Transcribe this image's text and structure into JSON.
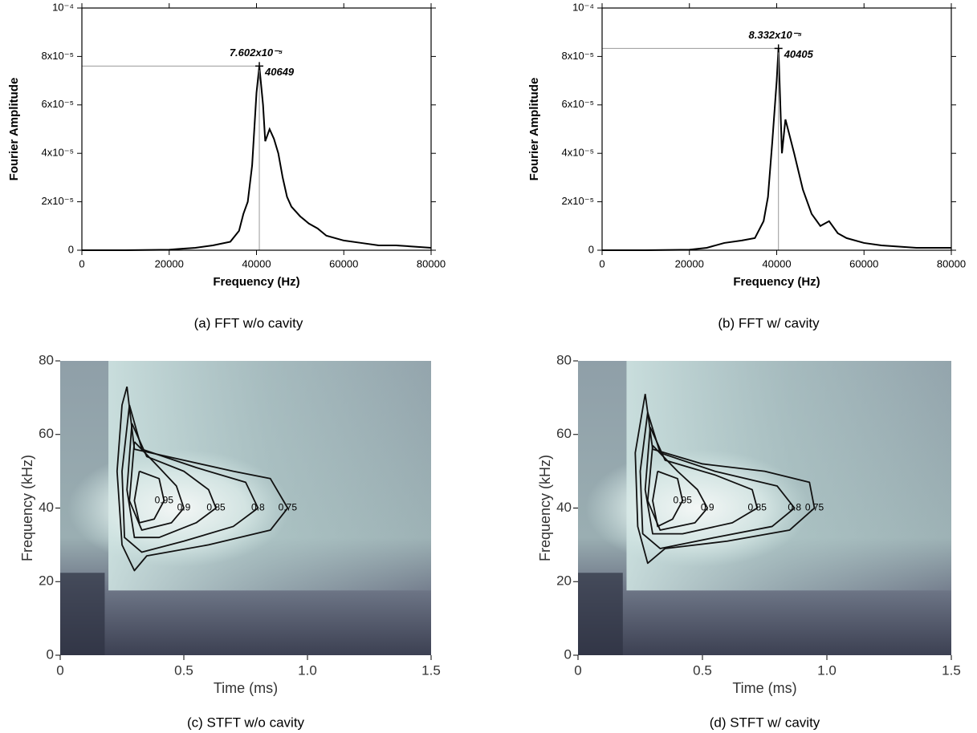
{
  "chart_data": [
    {
      "type": "line",
      "caption": "(a) FFT w/o cavity",
      "x_label": "Frequency (Hz)",
      "y_label": "Fourier Amplitude",
      "xlim": [
        0,
        80000
      ],
      "xticks": [
        0,
        20000,
        40000,
        60000,
        80000
      ],
      "ylim": [
        0,
        0.0001
      ],
      "yticks": [
        0,
        {
          "value": 2e-05,
          "label": "2x10⁻⁵"
        },
        {
          "value": 4e-05,
          "label": "4x10⁻⁵"
        },
        {
          "value": 6e-05,
          "label": "6x10⁻⁵"
        },
        {
          "value": 8e-05,
          "label": "8x10⁻⁵"
        },
        {
          "value": 0.0001,
          "label": "10⁻⁴"
        }
      ],
      "series": [
        {
          "color": "#000000",
          "x": [
            0,
            10000,
            20000,
            22000,
            26000,
            30000,
            34000,
            36000,
            37000,
            38000,
            39000,
            40000,
            40649,
            41500,
            42000,
            43000,
            44000,
            45000,
            46000,
            47000,
            48000,
            50000,
            52000,
            54000,
            56000,
            60000,
            64000,
            68000,
            72000,
            76000,
            80000
          ],
          "values": [
            0,
            0,
            2e-07,
            5e-07,
            1e-06,
            2e-06,
            3.5e-06,
            8e-06,
            1.5e-05,
            2e-05,
            3.5e-05,
            6.5e-05,
            7.602e-05,
            6e-05,
            4.5e-05,
            5e-05,
            4.6e-05,
            4e-05,
            3e-05,
            2.2e-05,
            1.8e-05,
            1.4e-05,
            1.1e-05,
            9e-06,
            6e-06,
            4e-06,
            3e-06,
            2e-06,
            2e-06,
            1.5e-06,
            1e-06
          ]
        }
      ],
      "annotations": [
        {
          "x": 40649,
          "y": 7.602e-05,
          "label": "7.602x10⁻⁵"
        }
      ]
    },
    {
      "type": "line",
      "caption": "(b) FFT w/ cavity",
      "x_label": "Frequency (Hz)",
      "y_label": "Fourier Amplitude",
      "xlim": [
        0,
        80000
      ],
      "xticks": [
        0,
        20000,
        40000,
        60000,
        80000
      ],
      "ylim": [
        0,
        0.0001
      ],
      "yticks": [
        0,
        {
          "value": 2e-05,
          "label": "2x10⁻⁵"
        },
        {
          "value": 4e-05,
          "label": "4x10⁻⁵"
        },
        {
          "value": 6e-05,
          "label": "6x10⁻⁵"
        },
        {
          "value": 8e-05,
          "label": "8x10⁻⁵"
        },
        {
          "value": 0.0001,
          "label": "10⁻⁴"
        }
      ],
      "series": [
        {
          "color": "#000000",
          "x": [
            0,
            10000,
            20000,
            24000,
            28000,
            32000,
            35000,
            37000,
            38000,
            39000,
            40000,
            40405,
            41200,
            42000,
            43000,
            44000,
            46000,
            48000,
            50000,
            52000,
            54000,
            56000,
            60000,
            64000,
            68000,
            72000,
            76000,
            80000
          ],
          "values": [
            0,
            0,
            2e-07,
            1e-06,
            3e-06,
            4e-06,
            5e-06,
            1.2e-05,
            2.2e-05,
            4.5e-05,
            7e-05,
            8.332e-05,
            4e-05,
            5.4e-05,
            4.7e-05,
            4e-05,
            2.5e-05,
            1.5e-05,
            1e-05,
            1.2e-05,
            7e-06,
            5e-06,
            3e-06,
            2e-06,
            1.5e-06,
            1e-06,
            1e-06,
            1e-06
          ]
        }
      ],
      "annotations": [
        {
          "x": 40405,
          "y": 8.332e-05,
          "label": "8.332x10⁻⁵"
        }
      ]
    },
    {
      "type": "contour",
      "caption": "(c) STFT w/o cavity",
      "x_label": "Time (ms)",
      "y_label": "Frequency (kHz)",
      "xlim": [
        0,
        1.5
      ],
      "xticks": [
        0,
        0.5,
        {
          "value": 1,
          "label": "1.0"
        },
        1.5
      ],
      "ylim": [
        0,
        80
      ],
      "yticks": [
        0,
        20,
        40,
        60,
        80
      ],
      "contours": [
        {
          "level": 0.75,
          "x": [
            0.27,
            0.3,
            0.5,
            0.7,
            0.85,
            0.92,
            0.85,
            0.6,
            0.35,
            0.3,
            0.25,
            0.23,
            0.25,
            0.27
          ],
          "y": [
            73,
            56,
            53,
            50,
            48,
            40,
            34,
            30,
            27,
            23,
            30,
            50,
            68,
            73
          ]
        },
        {
          "level": 0.8,
          "x": [
            0.28,
            0.33,
            0.55,
            0.75,
            0.8,
            0.7,
            0.5,
            0.33,
            0.26,
            0.25,
            0.28
          ],
          "y": [
            68,
            56,
            51,
            47,
            40,
            35,
            31,
            28,
            32,
            50,
            68
          ]
        },
        {
          "level": 0.85,
          "x": [
            0.29,
            0.35,
            0.5,
            0.6,
            0.63,
            0.55,
            0.4,
            0.3,
            0.27,
            0.29
          ],
          "y": [
            63,
            54,
            50,
            45,
            40,
            36,
            32,
            32,
            45,
            63
          ]
        },
        {
          "level": 0.9,
          "x": [
            0.3,
            0.4,
            0.47,
            0.5,
            0.45,
            0.33,
            0.28,
            0.3
          ],
          "y": [
            58,
            51,
            46,
            40,
            36,
            34,
            42,
            58
          ]
        },
        {
          "level": 0.95,
          "x": [
            0.32,
            0.4,
            0.42,
            0.38,
            0.32,
            0.3,
            0.32
          ],
          "y": [
            50,
            48,
            42,
            37,
            36,
            42,
            50
          ]
        }
      ]
    },
    {
      "type": "contour",
      "caption": "(d) STFT w/ cavity",
      "x_label": "Time (ms)",
      "y_label": "Frequency (kHz)",
      "xlim": [
        0,
        1.5
      ],
      "xticks": [
        0,
        0.5,
        {
          "value": 1,
          "label": "1.0"
        },
        1.5
      ],
      "ylim": [
        0,
        80
      ],
      "yticks": [
        0,
        20,
        40,
        60,
        80
      ],
      "contours": [
        {
          "level": 0.75,
          "x": [
            0.27,
            0.3,
            0.5,
            0.75,
            0.93,
            0.95,
            0.85,
            0.6,
            0.35,
            0.28,
            0.24,
            0.23,
            0.27
          ],
          "y": [
            71,
            56,
            52,
            50,
            47,
            40,
            34,
            31,
            29,
            25,
            35,
            55,
            71
          ]
        },
        {
          "level": 0.8,
          "x": [
            0.28,
            0.33,
            0.55,
            0.8,
            0.87,
            0.78,
            0.55,
            0.33,
            0.26,
            0.25,
            0.28
          ],
          "y": [
            66,
            55,
            50,
            46,
            40,
            35,
            32,
            29,
            33,
            50,
            66
          ]
        },
        {
          "level": 0.85,
          "x": [
            0.29,
            0.35,
            0.55,
            0.7,
            0.72,
            0.62,
            0.42,
            0.3,
            0.27,
            0.29
          ],
          "y": [
            62,
            53,
            49,
            45,
            40,
            36,
            33,
            33,
            45,
            62
          ]
        },
        {
          "level": 0.9,
          "x": [
            0.3,
            0.4,
            0.48,
            0.52,
            0.47,
            0.33,
            0.28,
            0.3
          ],
          "y": [
            57,
            50,
            45,
            40,
            36,
            34,
            42,
            57
          ]
        },
        {
          "level": 0.95,
          "x": [
            0.32,
            0.4,
            0.42,
            0.38,
            0.32,
            0.3,
            0.32
          ],
          "y": [
            50,
            48,
            42,
            37,
            35,
            42,
            50
          ]
        }
      ]
    }
  ]
}
